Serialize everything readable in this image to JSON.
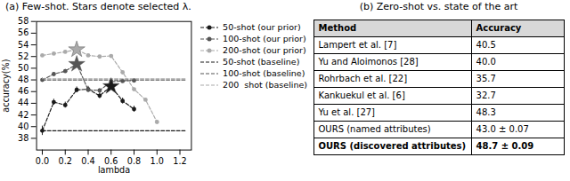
{
  "chart_data": [
    {
      "type": "line",
      "title": "(a) Few-shot. Stars denote selected λ.",
      "x_label": "lambda",
      "y_label": "accuracy(%)",
      "x": [
        0,
        0.1,
        0.2,
        0.3,
        0.4,
        0.5,
        0.6,
        0.7,
        0.8,
        0.9,
        1.0
      ],
      "xlim": [
        -0.05,
        1.3
      ],
      "ylim": [
        36,
        58
      ],
      "xticks": [
        {
          "value": 0,
          "label": "0.0"
        },
        0.2,
        0.4,
        0.6,
        0.8,
        {
          "value": 1.0,
          "label": "1.0"
        },
        1.2
      ],
      "yticks": [
        38,
        40,
        42,
        44,
        46,
        48,
        50,
        52,
        54,
        56,
        58
      ],
      "grid": false,
      "legend": "right",
      "series": [
        {
          "name": "50-shot (our prior)",
          "color": "#1a1a1a",
          "marker": "circle",
          "line_style": "dashed",
          "values": [
            39.3,
            44.2,
            43.7,
            46.3,
            46.4,
            45.3,
            46.9,
            44.4,
            43.0,
            null,
            null
          ],
          "errors": [
            0.8,
            0.5,
            0.5,
            0.5,
            0.5,
            0.5,
            0.5,
            0.5,
            0.5,
            null,
            null
          ]
        },
        {
          "name": "100-shot (our prior)",
          "color": "#555555",
          "marker": "circle",
          "line_style": "dashed",
          "values": [
            48.0,
            49.0,
            49.5,
            50.7,
            46.3,
            46.2,
            47.7,
            47.8,
            47.9,
            null,
            null
          ],
          "errors": [
            0.3,
            0.3,
            0.3,
            0.3,
            0.3,
            0.3,
            0.3,
            0.3,
            0.3,
            null,
            null
          ]
        },
        {
          "name": "200-shot (our prior)",
          "color": "#aaaaaa",
          "marker": "circle",
          "line_style": "dashed",
          "values": [
            52.2,
            52.5,
            52.8,
            53.2,
            52.2,
            52.0,
            52.1,
            49.3,
            46.4,
            44.6,
            40.8
          ],
          "errors": [
            0.2,
            0.2,
            0.2,
            0.2,
            0.2,
            0.2,
            0.2,
            0.2,
            0.2,
            0.2,
            0.2
          ]
        },
        {
          "name": "50-shot (baseline)",
          "color": "#1a1a1a",
          "line_style": "dashed",
          "x": [
            0,
            1.25
          ],
          "values": [
            39.3,
            39.3
          ]
        },
        {
          "name": "100-shot (baseline)",
          "color": "#555555",
          "line_style": "dashed",
          "x": [
            0,
            1.25
          ],
          "values": [
            48.0,
            48.0
          ]
        },
        {
          "name": "200  shot (baseline)",
          "color": "#aaaaaa",
          "line_style": "dashed",
          "x": [
            0,
            1.25
          ],
          "values": [
            48.2,
            48.2
          ]
        },
        {
          "type": "scatter",
          "marker": "star",
          "color": "#1a1a1a",
          "x": [
            0.6
          ],
          "values": [
            46.9
          ]
        },
        {
          "type": "scatter",
          "marker": "star",
          "color": "#555555",
          "x": [
            0.3
          ],
          "values": [
            50.7
          ]
        },
        {
          "type": "scatter",
          "marker": "star",
          "color": "#aaaaaa",
          "x": [
            0.3
          ],
          "values": [
            53.2
          ]
        }
      ]
    },
    {
      "type": "table",
      "title": "(b) Zero-shot vs. state of the art",
      "columns": [
        "Method",
        "Accuracy"
      ],
      "rows": [
        [
          "Lampert et al. [7]",
          "40.5"
        ],
        [
          "Yu and Aloimonos [28]",
          "40.0"
        ],
        [
          "Rohrbach et al. [22]",
          "35.7"
        ],
        [
          "Kankuekul et al. [6]",
          "32.7"
        ],
        [
          "Yu et al. [27]",
          "48.3"
        ],
        [
          "OURS (named attributes)",
          "43.0 ± 0.07"
        ],
        [
          "OURS (discovered attributes)",
          "48.7 ± 0.09"
        ]
      ]
    }
  ]
}
